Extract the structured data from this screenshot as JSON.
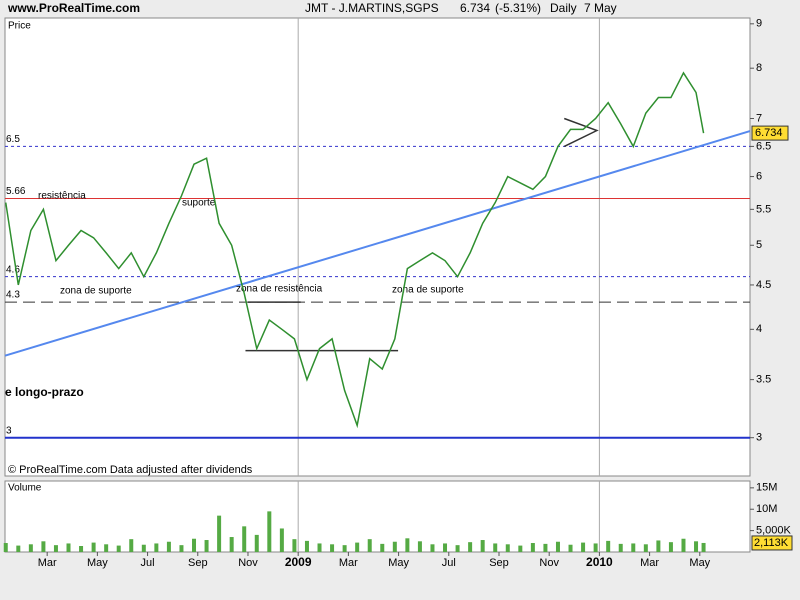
{
  "header": {
    "site": "www.ProRealTime.com",
    "symbol": "JMT - J.MARTINS,SGPS",
    "last": "6.734",
    "change": "(-5.31%)",
    "period": "Daily",
    "date": "7 May"
  },
  "chart_data": [
    {
      "type": "line",
      "panel_label": "Price",
      "footnote": "© ProRealTime.com  Data adjusted after dividends",
      "log_scale": true,
      "xlim": [
        0.32,
        30
      ],
      "ylim": [
        2.71,
        9.14
      ],
      "yticks": [
        3,
        3.5,
        4,
        4.5,
        5,
        5.5,
        6,
        6.5,
        7,
        8,
        9
      ],
      "x": [
        0.35,
        0.85,
        1.35,
        1.85,
        2.35,
        2.85,
        3.35,
        3.85,
        4.35,
        4.85,
        5.35,
        5.85,
        6.35,
        6.85,
        7.35,
        7.85,
        8.35,
        8.85,
        9.35,
        9.85,
        10.35,
        10.85,
        11.35,
        11.85,
        12.35,
        12.85,
        13.35,
        13.85,
        14.35,
        14.85,
        15.35,
        15.85,
        16.35,
        16.85,
        17.35,
        17.85,
        18.35,
        18.85,
        19.35,
        19.85,
        20.35,
        20.85,
        21.35,
        21.85,
        22.35,
        22.85,
        23.35,
        23.85,
        24.35,
        24.85,
        25.35,
        25.85,
        26.35,
        26.85,
        27.35,
        27.85,
        28.15
      ],
      "series": [
        {
          "name": "JMT",
          "color": "#2f8f2f",
          "values": [
            5.6,
            4.5,
            5.2,
            5.5,
            4.8,
            5.0,
            5.2,
            5.1,
            4.9,
            4.7,
            4.9,
            4.6,
            4.9,
            5.3,
            5.7,
            6.2,
            6.3,
            5.3,
            5.0,
            4.4,
            3.8,
            4.1,
            4.0,
            3.9,
            3.5,
            3.8,
            3.9,
            3.4,
            3.1,
            3.7,
            3.6,
            3.9,
            4.7,
            4.8,
            4.9,
            4.8,
            4.6,
            4.9,
            5.3,
            5.6,
            6.0,
            5.9,
            5.8,
            6.0,
            6.5,
            6.8,
            6.8,
            7.0,
            7.3,
            6.9,
            6.5,
            7.1,
            7.4,
            7.4,
            7.9,
            7.5,
            6.734
          ]
        }
      ],
      "levels": [
        {
          "value": 6.5,
          "color": "#3333cc",
          "dash": "3,3"
        },
        {
          "value": 5.66,
          "color": "#dd3333",
          "dash": "none"
        },
        {
          "value": 4.6,
          "color": "#3333cc",
          "dash": "3,3"
        },
        {
          "value": 4.3,
          "color": "#333333",
          "dash": "12,6"
        },
        {
          "value": 3,
          "color": "#2233cc",
          "dash": "none"
        }
      ],
      "trendline": {
        "x": [
          0.32,
          30
        ],
        "y": [
          3.73,
          6.77
        ],
        "color": "#5588ee"
      },
      "segments": [
        {
          "x": [
            10.0,
            12.1
          ],
          "y": [
            4.3,
            4.3
          ]
        },
        {
          "x": [
            9.9,
            15.98
          ],
          "y": [
            3.78,
            3.78
          ]
        },
        {
          "x": [
            22.6,
            23.9,
            22.6
          ],
          "y": [
            7.0,
            6.78,
            6.5
          ]
        }
      ],
      "annotations": [
        {
          "text": "resistência",
          "color": "#dd3333"
        },
        {
          "text": "suporte",
          "color": "#dd3333"
        },
        {
          "text": "zona de suporte",
          "color": "#3366cc"
        },
        {
          "text": "zona de resistência",
          "color": "#dd3333"
        },
        {
          "text": "zona de suporte",
          "color": "#3366cc"
        },
        {
          "text": "e longo-prazo",
          "color": "#4477ee"
        }
      ]
    },
    {
      "type": "bar",
      "panel_label": "Volume",
      "xlim": [
        0.32,
        30
      ],
      "ylim": [
        0,
        16600000
      ],
      "yticks": [
        {
          "value": 5000000,
          "label": "5,000K"
        },
        {
          "value": 10000000,
          "label": "10M"
        },
        {
          "value": 15000000,
          "label": "15M"
        }
      ],
      "xticks": [
        {
          "value": 2,
          "label": "Mar"
        },
        {
          "value": 4,
          "label": "May"
        },
        {
          "value": 6,
          "label": "Jul"
        },
        {
          "value": 8,
          "label": "Sep"
        },
        {
          "value": 10,
          "label": "Nov"
        },
        {
          "value": 12,
          "label": "2009"
        },
        {
          "value": 14,
          "label": "Mar"
        },
        {
          "value": 16,
          "label": "May"
        },
        {
          "value": 18,
          "label": "Jul"
        },
        {
          "value": 20,
          "label": "Sep"
        },
        {
          "value": 22,
          "label": "Nov"
        },
        {
          "value": 24,
          "label": "2010"
        },
        {
          "value": 26,
          "label": "Mar"
        },
        {
          "value": 28,
          "label": "May"
        }
      ],
      "x": [
        0.35,
        0.85,
        1.35,
        1.85,
        2.35,
        2.85,
        3.35,
        3.85,
        4.35,
        4.85,
        5.35,
        5.85,
        6.35,
        6.85,
        7.35,
        7.85,
        8.35,
        8.85,
        9.35,
        9.85,
        10.35,
        10.85,
        11.35,
        11.85,
        12.35,
        12.85,
        13.35,
        13.85,
        14.35,
        14.85,
        15.35,
        15.85,
        16.35,
        16.85,
        17.35,
        17.85,
        18.35,
        18.85,
        19.35,
        19.85,
        20.35,
        20.85,
        21.35,
        21.85,
        22.35,
        22.85,
        23.35,
        23.85,
        24.35,
        24.85,
        25.35,
        25.85,
        26.35,
        26.85,
        27.35,
        27.85,
        28.15
      ],
      "series": [
        {
          "name": "Volume",
          "color": "#55aa44",
          "values": [
            2100000,
            1500000,
            1800000,
            2500000,
            1600000,
            2000000,
            1400000,
            2200000,
            1800000,
            1500000,
            3000000,
            1700000,
            2000000,
            2400000,
            1600000,
            3100000,
            2800000,
            8500000,
            3500000,
            6000000,
            4000000,
            9500000,
            5500000,
            3000000,
            2600000,
            2000000,
            1800000,
            1600000,
            2200000,
            3000000,
            1900000,
            2400000,
            3200000,
            2500000,
            1800000,
            2000000,
            1600000,
            2300000,
            2800000,
            2000000,
            1800000,
            1500000,
            2100000,
            1900000,
            2400000,
            1700000,
            2200000,
            2000000,
            2600000,
            1900000,
            2000000,
            1800000,
            2700000,
            2300000,
            3100000,
            2500000,
            2113000
          ],
          "value_labels": [
            null,
            null,
            null,
            null,
            null,
            null,
            null,
            null,
            null,
            null,
            null,
            null,
            null,
            null,
            null,
            null,
            null,
            null,
            null,
            null,
            null,
            null,
            null,
            null,
            null,
            null,
            null,
            null,
            null,
            null,
            null,
            null,
            null,
            null,
            null,
            null,
            null,
            null,
            null,
            null,
            null,
            null,
            null,
            null,
            null,
            null,
            null,
            null,
            null,
            null,
            null,
            null,
            null,
            null,
            null,
            null,
            "2,113K"
          ]
        }
      ]
    }
  ]
}
